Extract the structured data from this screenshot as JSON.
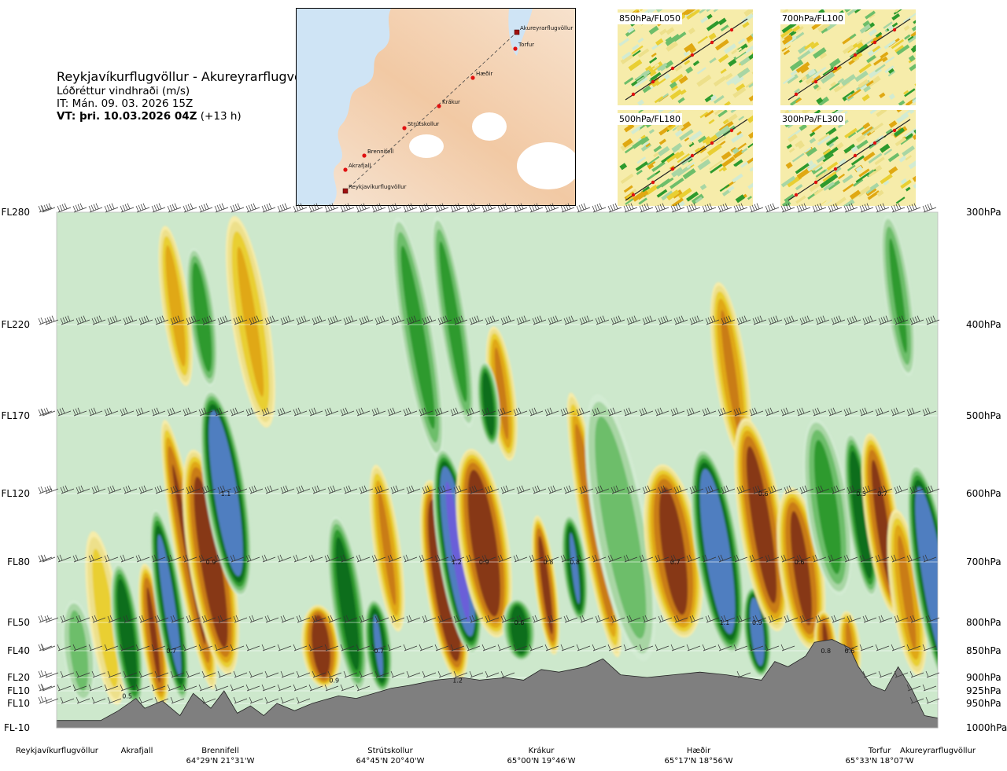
{
  "header": {
    "title": "Reykjavíkurflugvöllur - Akureyrarflugvöllur",
    "quantity": "Lóðréttur vindhraði (m/s)",
    "init_time": "IT: Mán. 09. 03. 2026 15Z",
    "valid_time_bold": "VT: þri. 10.03.2026 04Z",
    "valid_offset": "(+13 h)"
  },
  "map_labels": [
    "Akureyrarflugvöllur",
    "Torfur",
    "Hæðir",
    "Krákur",
    "Strútskollur",
    "Brennifell",
    "Akrafjall",
    "Reykjavíkurflugvöllur"
  ],
  "mini_maps": [
    {
      "label": "850hPa/FL050"
    },
    {
      "label": "700hPa/FL100"
    },
    {
      "label": "500hPa/FL180"
    },
    {
      "label": "300hPa/FL300"
    }
  ],
  "chart_data": {
    "type": "heatmap",
    "title": "Lóðréttur vindhraði (m/s)",
    "x_axis": "distance along route Reykjavíkurflugvöllur - Akureyrarflugvöllur",
    "y_axis": "pressure level (hPa)",
    "ylim_hPa": [
      1000,
      300
    ],
    "flight_levels": [
      {
        "fl": "FL280",
        "hpa": "300hPa"
      },
      {
        "fl": "FL220",
        "hpa": "400hPa"
      },
      {
        "fl": "FL170",
        "hpa": "500hPa"
      },
      {
        "fl": "FL120",
        "hpa": "600hPa"
      },
      {
        "fl": "FL80",
        "hpa": "700hPa"
      },
      {
        "fl": "FL50",
        "hpa": "800hPa"
      },
      {
        "fl": "FL40",
        "hpa": "850hPa"
      },
      {
        "fl": "FL20",
        "hpa": "900hPa"
      },
      {
        "fl": "FL10",
        "hpa": "925hPa"
      },
      {
        "fl": "FL10",
        "hpa": "950hPa"
      },
      {
        "fl": "FL-10",
        "hpa": "1000hPa"
      }
    ],
    "waypoints": [
      {
        "name": "Reykjavíkurflugvöllur",
        "coord": "",
        "dist": 0
      },
      {
        "name": "Akrafjall",
        "coord": "",
        "dist": 0.092
      },
      {
        "name": "Brennifell",
        "coord": "64°29'N 21°31'W",
        "dist": 0.186
      },
      {
        "name": "Strútskollur",
        "coord": "64°45'N 20°40'W",
        "dist": 0.377
      },
      {
        "name": "Krákur",
        "coord": "65°00'N 19°46'W",
        "dist": 0.56
      },
      {
        "name": "Hæðir",
        "coord": "65°17'N 18°56'W",
        "dist": 0.75
      },
      {
        "name": "Torfur",
        "coord": "65°33'N 18°07'W",
        "dist": 0.95
      },
      {
        "name": "Akureyrarflugvöllur",
        "coord": "",
        "dist": 1.0
      }
    ],
    "value_labels": [
      {
        "text": "1.1",
        "dist": 0.192,
        "hpa": 600
      },
      {
        "text": "0.9",
        "dist": 0.175,
        "hpa": 700
      },
      {
        "text": "0.7",
        "dist": 0.13,
        "hpa": 850
      },
      {
        "text": "0.5",
        "dist": 0.08,
        "hpa": 935
      },
      {
        "text": "0.9",
        "dist": 0.315,
        "hpa": 905
      },
      {
        "text": "0.7",
        "dist": 0.366,
        "hpa": 850
      },
      {
        "text": "1.2",
        "dist": 0.455,
        "hpa": 905
      },
      {
        "text": "1.2",
        "dist": 0.454,
        "hpa": 700
      },
      {
        "text": "0.9",
        "dist": 0.485,
        "hpa": 700
      },
      {
        "text": "0.6",
        "dist": 0.525,
        "hpa": 800
      },
      {
        "text": "0.8",
        "dist": 0.558,
        "hpa": 700
      },
      {
        "text": "0.8",
        "dist": 0.588,
        "hpa": 700
      },
      {
        "text": "0.7",
        "dist": 0.702,
        "hpa": 700
      },
      {
        "text": "1.1",
        "dist": 0.758,
        "hpa": 800
      },
      {
        "text": "0.9",
        "dist": 0.795,
        "hpa": 800
      },
      {
        "text": "0.6",
        "dist": 0.802,
        "hpa": 600
      },
      {
        "text": "0.6",
        "dist": 0.843,
        "hpa": 700
      },
      {
        "text": "0.8",
        "dist": 0.873,
        "hpa": 850
      },
      {
        "text": "0.6",
        "dist": 0.9,
        "hpa": 850
      },
      {
        "text": "0.5",
        "dist": 0.913,
        "hpa": 600
      },
      {
        "text": "0.7",
        "dist": 0.937,
        "hpa": 600
      }
    ],
    "bands": [
      {
        "dist": 0.025,
        "sign": 1,
        "amp": 0.35,
        "width": 0.012,
        "top": 760,
        "bottom": 950
      },
      {
        "dist": 0.055,
        "sign": -1,
        "amp": 0.35,
        "width": 0.012,
        "top": 650,
        "bottom": 960
      },
      {
        "dist": 0.08,
        "sign": 1,
        "amp": 0.75,
        "width": 0.01,
        "top": 700,
        "bottom": 960
      },
      {
        "dist": 0.11,
        "sign": -1,
        "amp": 0.8,
        "width": 0.009,
        "top": 700,
        "bottom": 960
      },
      {
        "dist": 0.128,
        "sign": 1,
        "amp": 0.9,
        "width": 0.01,
        "top": 620,
        "bottom": 950
      },
      {
        "dist": 0.15,
        "sign": -1,
        "amp": 0.8,
        "width": 0.01,
        "top": 500,
        "bottom": 930
      },
      {
        "dist": 0.175,
        "sign": -1,
        "amp": 0.95,
        "width": 0.016,
        "top": 540,
        "bottom": 900
      },
      {
        "dist": 0.192,
        "sign": 1,
        "amp": 1.1,
        "width": 0.015,
        "top": 470,
        "bottom": 760
      },
      {
        "dist": 0.165,
        "sign": 1,
        "amp": 0.55,
        "width": 0.01,
        "top": 330,
        "bottom": 470
      },
      {
        "dist": 0.135,
        "sign": -1,
        "amp": 0.5,
        "width": 0.01,
        "top": 310,
        "bottom": 470
      },
      {
        "dist": 0.22,
        "sign": -1,
        "amp": 0.45,
        "width": 0.014,
        "top": 300,
        "bottom": 520
      },
      {
        "dist": 0.3,
        "sign": -1,
        "amp": 0.95,
        "width": 0.014,
        "top": 770,
        "bottom": 920
      },
      {
        "dist": 0.33,
        "sign": 1,
        "amp": 0.7,
        "width": 0.012,
        "top": 630,
        "bottom": 930
      },
      {
        "dist": 0.365,
        "sign": 1,
        "amp": 0.8,
        "width": 0.01,
        "top": 760,
        "bottom": 930
      },
      {
        "dist": 0.375,
        "sign": -1,
        "amp": 0.6,
        "width": 0.01,
        "top": 560,
        "bottom": 820
      },
      {
        "dist": 0.41,
        "sign": 1,
        "amp": 0.5,
        "width": 0.012,
        "top": 300,
        "bottom": 560
      },
      {
        "dist": 0.44,
        "sign": -1,
        "amp": 1.1,
        "width": 0.014,
        "top": 580,
        "bottom": 910
      },
      {
        "dist": 0.45,
        "sign": 1,
        "amp": 0.5,
        "width": 0.01,
        "top": 300,
        "bottom": 520
      },
      {
        "dist": 0.455,
        "sign": 1,
        "amp": 1.2,
        "width": 0.014,
        "top": 540,
        "bottom": 860
      },
      {
        "dist": 0.485,
        "sign": -1,
        "amp": 1.0,
        "width": 0.018,
        "top": 540,
        "bottom": 830
      },
      {
        "dist": 0.505,
        "sign": -1,
        "amp": 0.6,
        "width": 0.01,
        "top": 400,
        "bottom": 560
      },
      {
        "dist": 0.49,
        "sign": 1,
        "amp": 0.7,
        "width": 0.008,
        "top": 440,
        "bottom": 540
      },
      {
        "dist": 0.525,
        "sign": 1,
        "amp": 0.75,
        "width": 0.012,
        "top": 760,
        "bottom": 870
      },
      {
        "dist": 0.555,
        "sign": -1,
        "amp": 0.85,
        "width": 0.008,
        "top": 630,
        "bottom": 860
      },
      {
        "dist": 0.588,
        "sign": 1,
        "amp": 0.8,
        "width": 0.009,
        "top": 630,
        "bottom": 800
      },
      {
        "dist": 0.61,
        "sign": -1,
        "amp": 0.7,
        "width": 0.01,
        "top": 470,
        "bottom": 870
      },
      {
        "dist": 0.64,
        "sign": 1,
        "amp": 0.4,
        "width": 0.02,
        "top": 470,
        "bottom": 880
      },
      {
        "dist": 0.7,
        "sign": -1,
        "amp": 0.9,
        "width": 0.02,
        "top": 560,
        "bottom": 830
      },
      {
        "dist": 0.75,
        "sign": 1,
        "amp": 1.1,
        "width": 0.016,
        "top": 540,
        "bottom": 860
      },
      {
        "dist": 0.795,
        "sign": 1,
        "amp": 0.95,
        "width": 0.01,
        "top": 740,
        "bottom": 900
      },
      {
        "dist": 0.765,
        "sign": -1,
        "amp": 0.6,
        "width": 0.012,
        "top": 360,
        "bottom": 560
      },
      {
        "dist": 0.8,
        "sign": -1,
        "amp": 0.9,
        "width": 0.016,
        "top": 500,
        "bottom": 820
      },
      {
        "dist": 0.845,
        "sign": -1,
        "amp": 0.85,
        "width": 0.016,
        "top": 590,
        "bottom": 850
      },
      {
        "dist": 0.875,
        "sign": 1,
        "amp": 0.5,
        "width": 0.016,
        "top": 500,
        "bottom": 760
      },
      {
        "dist": 0.873,
        "sign": -1,
        "amp": 0.8,
        "width": 0.008,
        "top": 780,
        "bottom": 900
      },
      {
        "dist": 0.9,
        "sign": -1,
        "amp": 0.6,
        "width": 0.008,
        "top": 780,
        "bottom": 910
      },
      {
        "dist": 0.913,
        "sign": 1,
        "amp": 0.75,
        "width": 0.01,
        "top": 520,
        "bottom": 760
      },
      {
        "dist": 0.937,
        "sign": -1,
        "amp": 0.85,
        "width": 0.012,
        "top": 520,
        "bottom": 790
      },
      {
        "dist": 0.955,
        "sign": 1,
        "amp": 0.45,
        "width": 0.01,
        "top": 300,
        "bottom": 460
      },
      {
        "dist": 0.965,
        "sign": -1,
        "amp": 0.6,
        "width": 0.012,
        "top": 620,
        "bottom": 900
      },
      {
        "dist": 0.995,
        "sign": 1,
        "amp": 1.1,
        "width": 0.014,
        "top": 560,
        "bottom": 930
      }
    ],
    "terrain_hpa": [
      {
        "dist": 0.0,
        "hpa": 985
      },
      {
        "dist": 0.05,
        "hpa": 985
      },
      {
        "dist": 0.07,
        "hpa": 965
      },
      {
        "dist": 0.09,
        "hpa": 940
      },
      {
        "dist": 0.1,
        "hpa": 960
      },
      {
        "dist": 0.12,
        "hpa": 945
      },
      {
        "dist": 0.14,
        "hpa": 975
      },
      {
        "dist": 0.155,
        "hpa": 930
      },
      {
        "dist": 0.175,
        "hpa": 960
      },
      {
        "dist": 0.19,
        "hpa": 925
      },
      {
        "dist": 0.205,
        "hpa": 970
      },
      {
        "dist": 0.22,
        "hpa": 955
      },
      {
        "dist": 0.235,
        "hpa": 975
      },
      {
        "dist": 0.25,
        "hpa": 950
      },
      {
        "dist": 0.27,
        "hpa": 965
      },
      {
        "dist": 0.29,
        "hpa": 950
      },
      {
        "dist": 0.3,
        "hpa": 945
      },
      {
        "dist": 0.32,
        "hpa": 935
      },
      {
        "dist": 0.34,
        "hpa": 940
      },
      {
        "dist": 0.36,
        "hpa": 930
      },
      {
        "dist": 0.38,
        "hpa": 920
      },
      {
        "dist": 0.4,
        "hpa": 915
      },
      {
        "dist": 0.43,
        "hpa": 905
      },
      {
        "dist": 0.46,
        "hpa": 900
      },
      {
        "dist": 0.48,
        "hpa": 905
      },
      {
        "dist": 0.51,
        "hpa": 900
      },
      {
        "dist": 0.53,
        "hpa": 905
      },
      {
        "dist": 0.55,
        "hpa": 885
      },
      {
        "dist": 0.57,
        "hpa": 890
      },
      {
        "dist": 0.6,
        "hpa": 880
      },
      {
        "dist": 0.62,
        "hpa": 865
      },
      {
        "dist": 0.64,
        "hpa": 895
      },
      {
        "dist": 0.67,
        "hpa": 900
      },
      {
        "dist": 0.7,
        "hpa": 895
      },
      {
        "dist": 0.73,
        "hpa": 890
      },
      {
        "dist": 0.76,
        "hpa": 895
      },
      {
        "dist": 0.78,
        "hpa": 900
      },
      {
        "dist": 0.8,
        "hpa": 905
      },
      {
        "dist": 0.815,
        "hpa": 870
      },
      {
        "dist": 0.83,
        "hpa": 880
      },
      {
        "dist": 0.85,
        "hpa": 860
      },
      {
        "dist": 0.86,
        "hpa": 835
      },
      {
        "dist": 0.88,
        "hpa": 830
      },
      {
        "dist": 0.9,
        "hpa": 845
      },
      {
        "dist": 0.91,
        "hpa": 880
      },
      {
        "dist": 0.925,
        "hpa": 915
      },
      {
        "dist": 0.94,
        "hpa": 925
      },
      {
        "dist": 0.955,
        "hpa": 880
      },
      {
        "dist": 0.97,
        "hpa": 920
      },
      {
        "dist": 0.985,
        "hpa": 975
      },
      {
        "dist": 1.0,
        "hpa": 980
      }
    ]
  },
  "colors": {
    "down_1": "#f6ecaa",
    "down_2": "#ede08b",
    "down_3": "#e9cf33",
    "down_4": "#e0a812",
    "down_5": "#c97c12",
    "down_6": "#873813",
    "down_7": "#a0161c",
    "up_1": "#d2ebd2",
    "up_2": "#a8d6a4",
    "up_3": "#6dbe6a",
    "up_4": "#2d9a2d",
    "up_5": "#0c6e1e",
    "up_6": "#4f7ec0",
    "up_7": "#6a5fd8",
    "terrain": "#7f7f7f",
    "background": "#cde8cc"
  }
}
